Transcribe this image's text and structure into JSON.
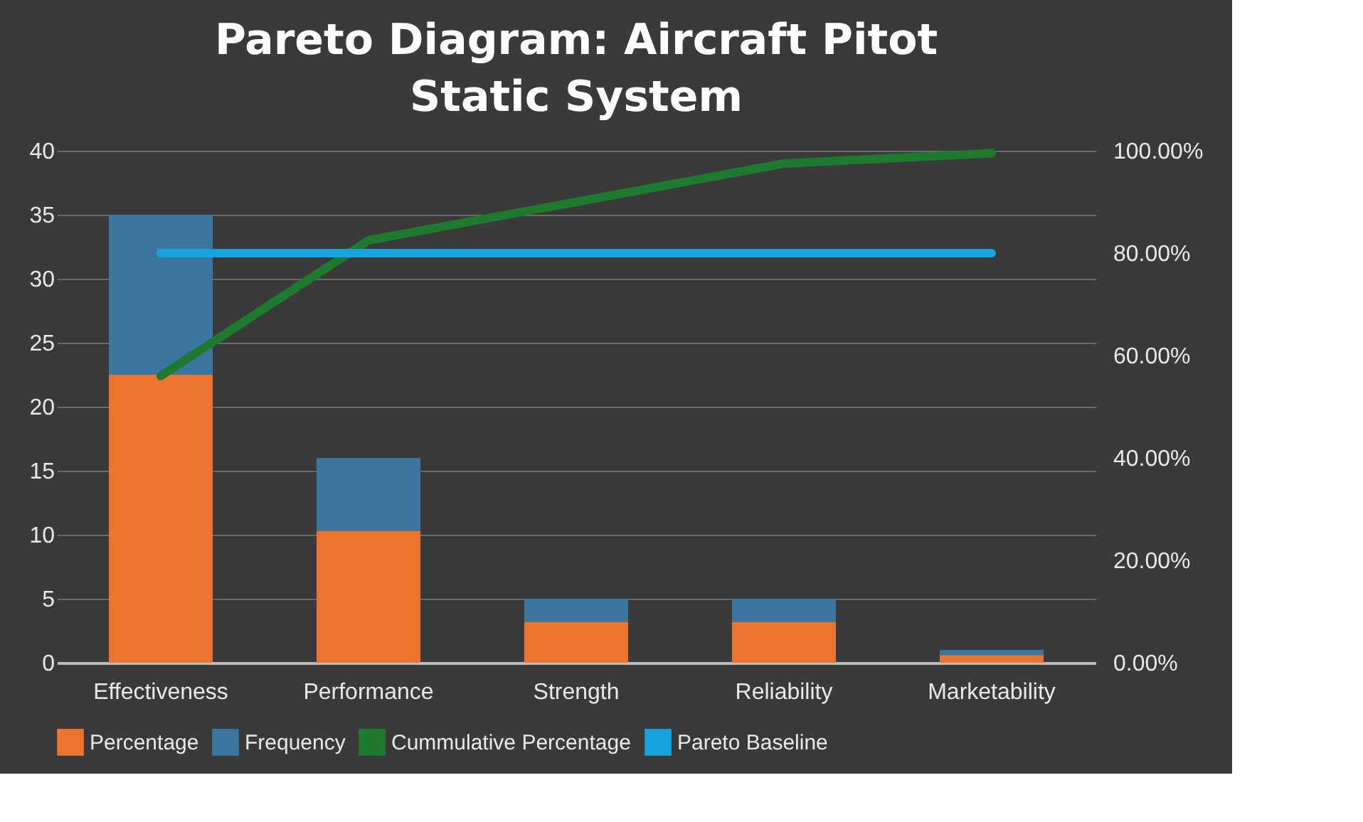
{
  "chart_data": {
    "type": "bar",
    "title": "Pareto Diagram: Aircraft Pitot Static System",
    "categories": [
      "Effectiveness",
      "Performance",
      "Strength",
      "Reliability",
      "Marketability"
    ],
    "stacked": true,
    "series": [
      {
        "name": "Percentage",
        "color": "#ed7330",
        "values": [
          22.5,
          10.3,
          3.2,
          3.2,
          0.6
        ]
      },
      {
        "name": "Frequency",
        "color": "#3a76a0",
        "values": [
          12.5,
          5.7,
          1.8,
          1.8,
          0.4
        ]
      },
      {
        "name": "Cummulative Percentage",
        "type": "line",
        "axis": "y2",
        "color": "#1e7a2e",
        "values": [
          56,
          82.5,
          90,
          97.5,
          99.5
        ]
      },
      {
        "name": "Pareto Baseline",
        "type": "line",
        "axis": "y2",
        "color": "#17a3dc",
        "values": [
          80,
          80,
          80,
          80,
          80
        ]
      }
    ],
    "ylim": [
      0,
      40
    ],
    "yticks": [
      0,
      5,
      10,
      15,
      20,
      25,
      30,
      35,
      40
    ],
    "y2lim": [
      0,
      100
    ],
    "y2ticks": [
      {
        "value": 0,
        "label": "0.00%"
      },
      {
        "value": 20,
        "label": "20.00%"
      },
      {
        "value": 40,
        "label": "40.00%"
      },
      {
        "value": 60,
        "label": "60.00%"
      },
      {
        "value": 80,
        "label": "80.00%"
      },
      {
        "value": 100,
        "label": "100.00%"
      }
    ],
    "grid": "y",
    "legend": "bottom",
    "line_style": "solid",
    "marker": "none"
  }
}
